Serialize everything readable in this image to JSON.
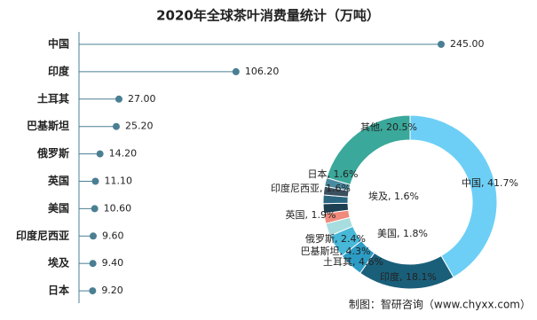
{
  "chart_data": [
    {
      "type": "lollipop",
      "title": "2020年全球茶叶消费量统计（万吨）",
      "categories": [
        "中国",
        "印度",
        "土耳其",
        "巴基斯坦",
        "俄罗斯",
        "英国",
        "美国",
        "印度尼西亚",
        "埃及",
        "日本"
      ],
      "values": [
        245,
        106.2,
        27,
        25.2,
        14.2,
        11.1,
        10.6,
        9.6,
        9.4,
        9.2
      ],
      "value_labels": [
        "245.00",
        "106.20",
        "27.00",
        "25.20",
        "14.20",
        "11.10",
        "10.60",
        "9.60",
        "9.40",
        "9.20"
      ],
      "color": "#4a7f93",
      "xlim": [
        0,
        245
      ]
    },
    {
      "type": "donut",
      "values": [
        41.7,
        18.1,
        4.6,
        4.3,
        2.4,
        1.9,
        1.8,
        1.6,
        1.6,
        1.6,
        20.5
      ],
      "value_labels": [
        "中国, 41.7%",
        "印度, 18.1%",
        "土耳其, 4.6%",
        "巴基斯坦, 4.3%",
        "俄罗斯, 2.4%",
        "英国, 1.9%",
        "美国, 1.8%",
        "印度尼西亚, 1.6%",
        "埃及, 1.6%",
        "日本, 1.6%",
        "其他, 20.5%"
      ],
      "colors": [
        "#6dcff6",
        "#1a5f7a",
        "#2c9cc4",
        "#47b8d8",
        "#a8dde0",
        "#f08a7b",
        "#1d3f52",
        "#2b6680",
        "#3b4f5f",
        "#4a8aa0",
        "#3aa89a"
      ]
    }
  ],
  "source": "制图：智研咨询（www.chyxx.com）"
}
